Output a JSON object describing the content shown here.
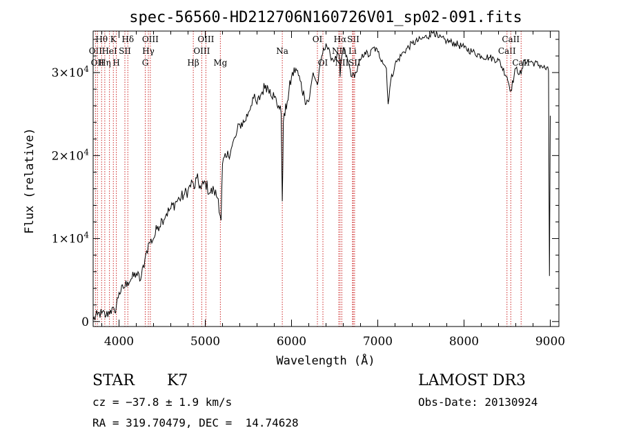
{
  "chart_data": {
    "type": "line",
    "title": "spec-56560-HD212706N160726V01_sp02-091.fits",
    "xlabel": "Wavelength (Å)",
    "ylabel": "Flux (relative)",
    "xlim": [
      3700,
      9100
    ],
    "ylim": [
      -600,
      35000
    ],
    "x_ticks": [
      {
        "value": 4000,
        "label": "4000"
      },
      {
        "value": 5000,
        "label": "5000"
      },
      {
        "value": 6000,
        "label": "6000"
      },
      {
        "value": 7000,
        "label": "7000"
      },
      {
        "value": 8000,
        "label": "8000"
      },
      {
        "value": 9000,
        "label": "9000"
      }
    ],
    "y_ticks": [
      {
        "value": 0,
        "label": "0",
        "exp": ""
      },
      {
        "value": 10000,
        "label": "1×10",
        "exp": "4"
      },
      {
        "value": 20000,
        "label": "2×10",
        "exp": "4"
      },
      {
        "value": 30000,
        "label": "3×10",
        "exp": "4"
      }
    ],
    "grid": false,
    "series": [
      {
        "color": "#000000",
        "x": [
          3700,
          3750,
          3800,
          3850,
          3900,
          3950,
          4000,
          4050,
          4100,
          4150,
          4200,
          4250,
          4300,
          4320,
          4350,
          4400,
          4450,
          4500,
          4550,
          4600,
          4650,
          4700,
          4750,
          4800,
          4850,
          4870,
          4900,
          4950,
          5000,
          5050,
          5100,
          5150,
          5183,
          5200,
          5250,
          5300,
          5350,
          5400,
          5450,
          5500,
          5550,
          5600,
          5650,
          5700,
          5750,
          5800,
          5850,
          5880,
          5893,
          5905,
          5950,
          6000,
          6050,
          6100,
          6150,
          6200,
          6250,
          6300,
          6350,
          6400,
          6450,
          6500,
          6550,
          6563,
          6580,
          6600,
          6650,
          6700,
          6750,
          6800,
          6850,
          6900,
          6950,
          7000,
          7050,
          7100,
          7120,
          7150,
          7200,
          7300,
          7400,
          7500,
          7600,
          7650,
          7700,
          7800,
          7900,
          8000,
          8100,
          8200,
          8300,
          8400,
          8498,
          8542,
          8600,
          8662,
          8700,
          8800,
          8900,
          8980,
          8990,
          9000
        ],
        "y": [
          200,
          800,
          1000,
          700,
          1400,
          1100,
          3500,
          4000,
          4800,
          5200,
          5800,
          5000,
          7500,
          8500,
          9500,
          10000,
          11500,
          12300,
          13000,
          13600,
          14300,
          14800,
          15200,
          15800,
          16800,
          16000,
          17300,
          16000,
          16800,
          15500,
          15800,
          14800,
          12200,
          19000,
          19800,
          20800,
          22200,
          23800,
          24000,
          25200,
          27000,
          26200,
          27500,
          28500,
          28000,
          27000,
          26000,
          25000,
          14500,
          24000,
          26500,
          29500,
          30500,
          29000,
          27000,
          26500,
          30000,
          28500,
          32000,
          33500,
          32000,
          31500,
          32200,
          29500,
          31800,
          33000,
          31500,
          29500,
          30000,
          31500,
          32500,
          32000,
          33000,
          32500,
          31500,
          30500,
          26200,
          29000,
          31000,
          32500,
          33500,
          34000,
          34500,
          35000,
          34200,
          33800,
          33500,
          33000,
          32500,
          32000,
          31800,
          31500,
          29500,
          27800,
          30500,
          29800,
          31500,
          31200,
          30800,
          30200,
          5500,
          24800
        ]
      }
    ],
    "line_markers": [
      {
        "wavelength": 3727,
        "label": "OII",
        "row": 2
      },
      {
        "wavelength": 3750,
        "label": "OII",
        "row": 3
      },
      {
        "wavelength": 3798,
        "label": "Hθ",
        "row": 1
      },
      {
        "wavelength": 3835,
        "label": "Hη",
        "row": 3
      },
      {
        "wavelength": 3889,
        "label": "HeI",
        "row": 2
      },
      {
        "wavelength": 3934,
        "label": "K",
        "row": 1
      },
      {
        "wavelength": 3969,
        "label": "H",
        "row": 3
      },
      {
        "wavelength": 4068,
        "label": "SII",
        "row": 2
      },
      {
        "wavelength": 4102,
        "label": "Hδ",
        "row": 1
      },
      {
        "wavelength": 4304,
        "label": "G",
        "row": 3
      },
      {
        "wavelength": 4340,
        "label": "Hγ",
        "row": 2
      },
      {
        "wavelength": 4363,
        "label": "OIII",
        "row": 1
      },
      {
        "wavelength": 4861,
        "label": "Hβ",
        "row": 3
      },
      {
        "wavelength": 4959,
        "label": "OIII",
        "row": 2
      },
      {
        "wavelength": 5007,
        "label": "OIII",
        "row": 1
      },
      {
        "wavelength": 5175,
        "label": "Mg",
        "row": 3
      },
      {
        "wavelength": 5893,
        "label": "Na",
        "row": 2
      },
      {
        "wavelength": 6300,
        "label": "OI",
        "row": 1
      },
      {
        "wavelength": 6364,
        "label": "OI",
        "row": 3
      },
      {
        "wavelength": 6548,
        "label": "NII",
        "row": 2
      },
      {
        "wavelength": 6563,
        "label": "Hα",
        "row": 1
      },
      {
        "wavelength": 6583,
        "label": "NII",
        "row": 3
      },
      {
        "wavelength": 6707,
        "label": "Li",
        "row": 2
      },
      {
        "wavelength": 6716,
        "label": "SII",
        "row": 1
      },
      {
        "wavelength": 6731,
        "label": "SII",
        "row": 3
      },
      {
        "wavelength": 8498,
        "label": "CaII",
        "row": 2
      },
      {
        "wavelength": 8542,
        "label": "CaII",
        "row": 1
      },
      {
        "wavelength": 8662,
        "label": "CaII",
        "row": 3
      }
    ],
    "marker_color": "#cc2222"
  },
  "info": {
    "object_type": "STAR",
    "subclass": "K7",
    "survey": "LAMOST DR3",
    "cz": "cz = −37.8 ± 1.9 km/s",
    "obs_date": "Obs-Date: 20130924",
    "coords": "RA = 319.70479, DEC =  14.74628"
  }
}
